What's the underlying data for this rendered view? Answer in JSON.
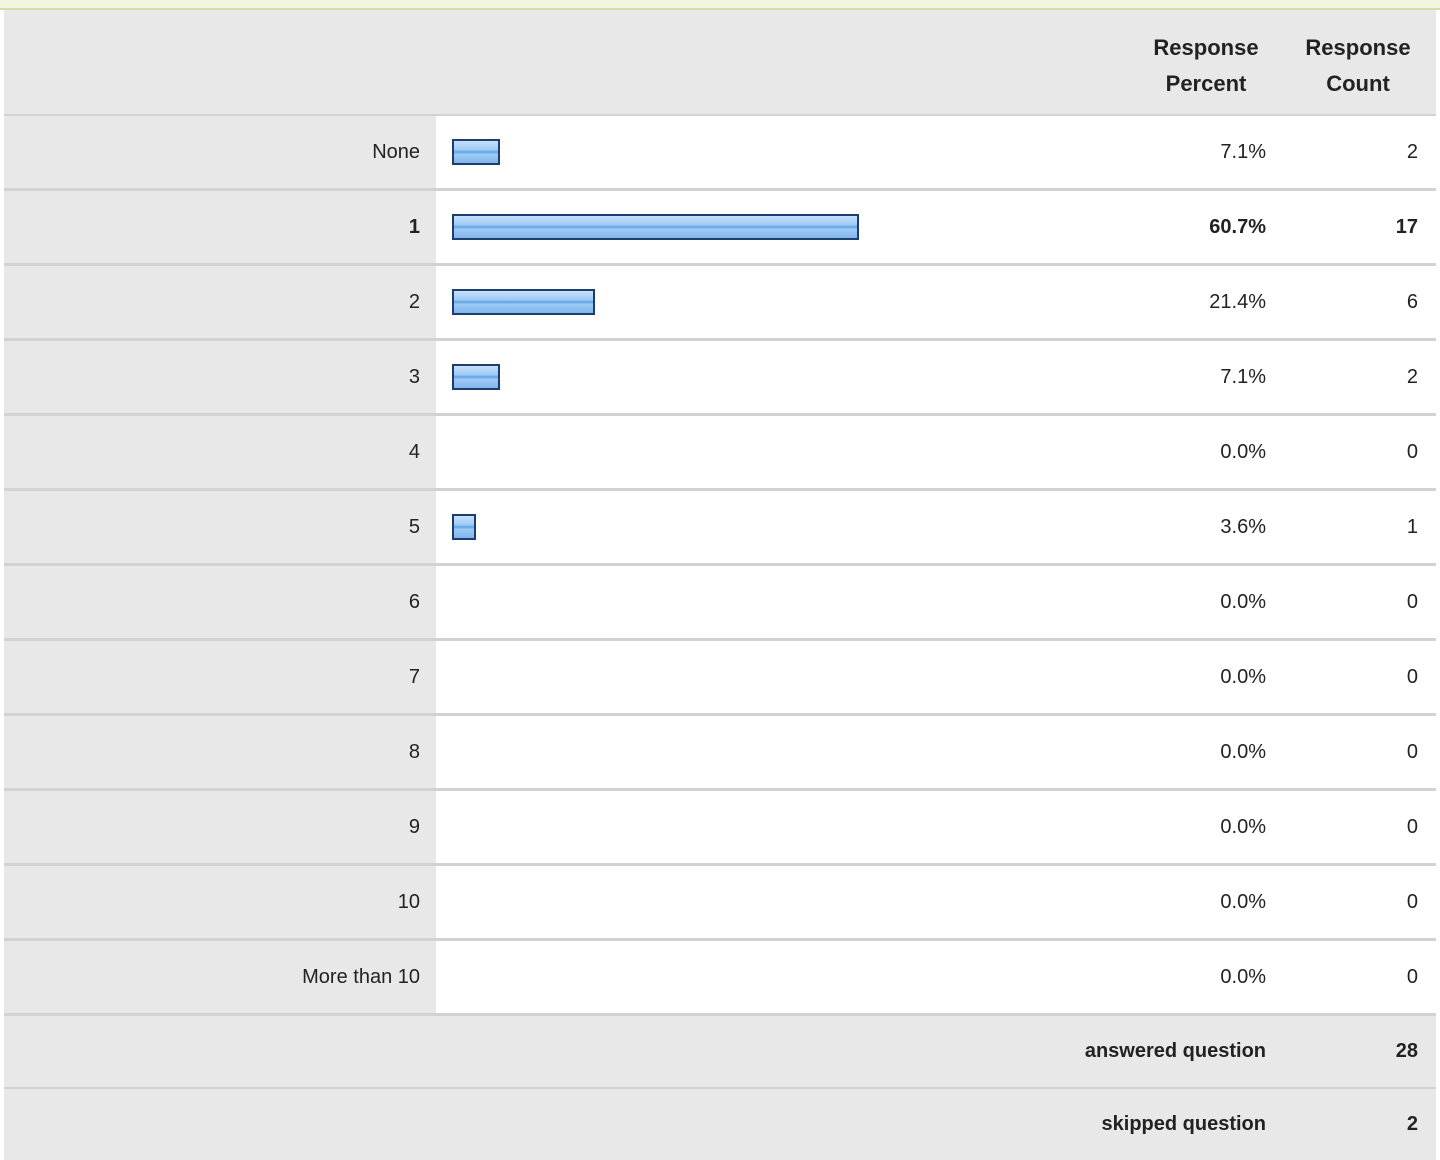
{
  "header": {
    "percent_line1": "Response",
    "percent_line2": "Percent",
    "count_line1": "Response",
    "count_line2": "Count"
  },
  "summary": {
    "answered_label": "answered question",
    "answered_value": "28",
    "skipped_label": "skipped question",
    "skipped_value": "2"
  },
  "colors": {
    "bar_fill": "#9fcaf5",
    "bar_border": "#1d3d6e",
    "label_bg": "#e8e8e8"
  },
  "chart_data": {
    "type": "bar",
    "orientation": "horizontal",
    "categories": [
      "None",
      "1",
      "2",
      "3",
      "4",
      "5",
      "6",
      "7",
      "8",
      "9",
      "10",
      "More than 10"
    ],
    "percent_labels": [
      "7.1%",
      "60.7%",
      "21.4%",
      "7.1%",
      "0.0%",
      "3.6%",
      "0.0%",
      "0.0%",
      "0.0%",
      "0.0%",
      "0.0%",
      "0.0%"
    ],
    "values": [
      7.1,
      60.7,
      21.4,
      7.1,
      0.0,
      3.6,
      0.0,
      0.0,
      0.0,
      0.0,
      0.0,
      0.0
    ],
    "counts": [
      2,
      17,
      6,
      2,
      0,
      1,
      0,
      0,
      0,
      0,
      0,
      0
    ],
    "highlight_index": 1,
    "xlim": [
      0,
      100
    ],
    "grid": false
  }
}
